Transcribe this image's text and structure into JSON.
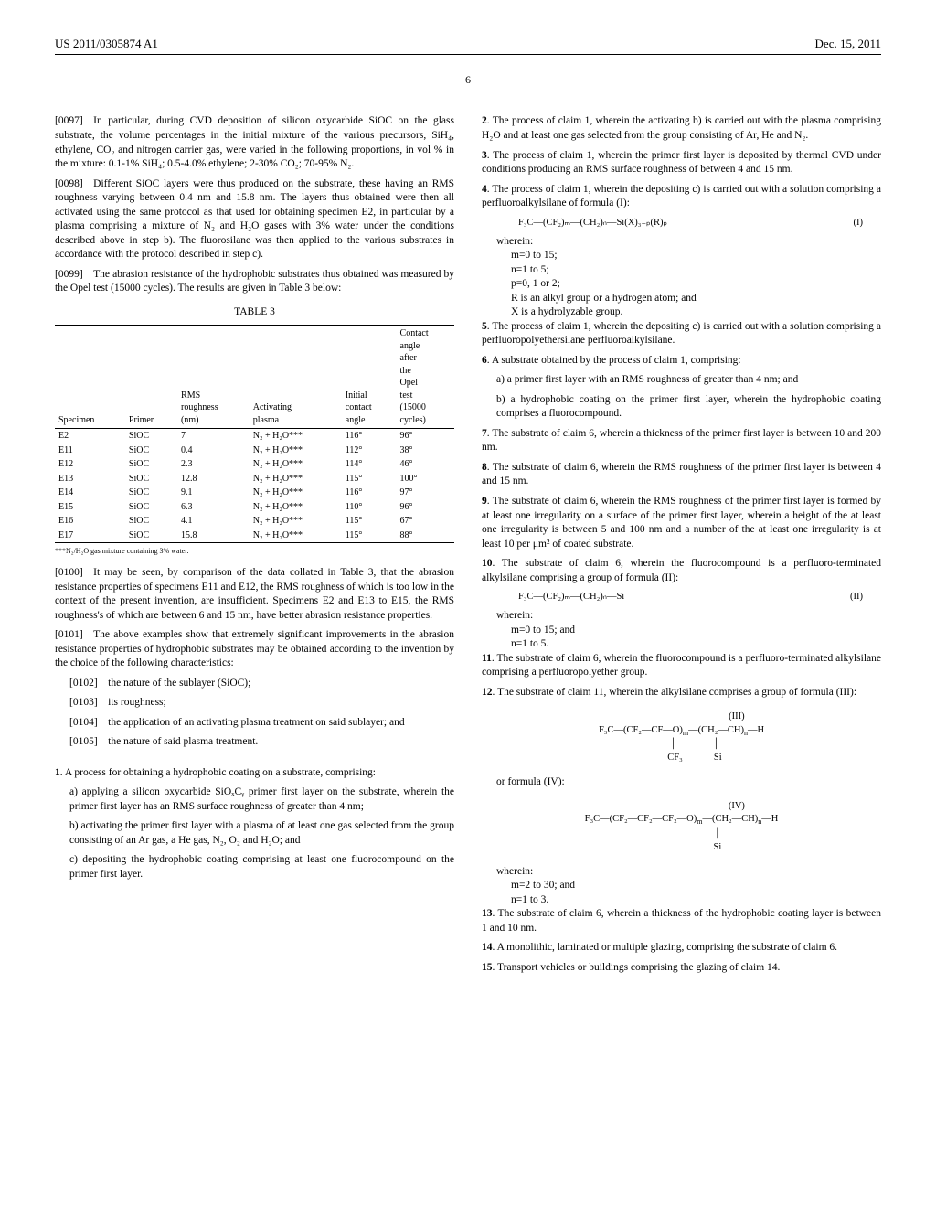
{
  "header": {
    "pub_number": "US 2011/0305874 A1",
    "date": "Dec. 15, 2011"
  },
  "page_num": "6",
  "left": {
    "p97": "[0097] In particular, during CVD deposition of silicon oxycarbide SiOC on the glass substrate, the volume percentages in the initial mixture of the various precursors, SiH₄, ethylene, CO₂ and nitrogen carrier gas, were varied in the following proportions, in vol % in the mixture: 0.1-1% SiH₄; 0.5-4.0% ethylene; 2-30% CO₂; 70-95% N₂.",
    "p98": "[0098] Different SiOC layers were thus produced on the substrate, these having an RMS roughness varying between 0.4 nm and 15.8 nm. The layers thus obtained were then all activated using the same protocol as that used for obtaining specimen E2, in particular by a plasma comprising a mixture of N₂ and H₂O gases with 3% water under the conditions described above in step b). The fluorosilane was then applied to the various substrates in accordance with the protocol described in step c).",
    "p99": "[0099] The abrasion resistance of the hydrophobic substrates thus obtained was measured by the Opel test (15000 cycles). The results are given in Table 3 below:",
    "table_title": "TABLE 3",
    "table": {
      "headers": [
        "Specimen",
        "Primer",
        "RMS\nroughness\n(nm)",
        "Activating\nplasma",
        "Initial\ncontact\nangle",
        "Contact\nangle\nafter\nthe\nOpel\ntest\n(15000\ncycles)"
      ],
      "rows": [
        [
          "E2",
          "SiOC",
          "7",
          "N₂ + H₂O***",
          "116°",
          "96°"
        ],
        [
          "E11",
          "SiOC",
          "0.4",
          "N₂ + H₂O***",
          "112°",
          "38°"
        ],
        [
          "E12",
          "SiOC",
          "2.3",
          "N₂ + H₂O***",
          "114°",
          "46°"
        ],
        [
          "E13",
          "SiOC",
          "12.8",
          "N₂ + H₂O***",
          "115°",
          "100°"
        ],
        [
          "E14",
          "SiOC",
          "9.1",
          "N₂ + H₂O***",
          "116°",
          "97°"
        ],
        [
          "E15",
          "SiOC",
          "6.3",
          "N₂ + H₂O***",
          "110°",
          "96°"
        ],
        [
          "E16",
          "SiOC",
          "4.1",
          "N₂ + H₂O***",
          "115°",
          "67°"
        ],
        [
          "E17",
          "SiOC",
          "15.8",
          "N₂ + H₂O***",
          "115°",
          "88°"
        ]
      ]
    },
    "footnote": "***N₂/H₂O gas mixture containing 3% water.",
    "p100": "[0100] It may be seen, by comparison of the data collated in Table 3, that the abrasion resistance properties of specimens E11 and E12, the RMS roughness of which is too low in the context of the present invention, are insufficient. Specimens E2 and E13 to E15, the RMS roughness's of which are between 6 and 15 nm, have better abrasion resistance properties.",
    "p101": "[0101] The above examples show that extremely significant improvements in the abrasion resistance properties of hydrophobic substrates may be obtained according to the invention by the choice of the following characteristics:",
    "p102": "[0102] the nature of the sublayer (SiOC);",
    "p103": "[0103] its roughness;",
    "p104": "[0104] the application of an activating plasma treatment on said sublayer; and",
    "p105": "[0105] the nature of said plasma treatment.",
    "claim1_intro": ". A process for obtaining a hydrophobic coating on a substrate, comprising:",
    "c1a": "a) applying a silicon oxycarbide SiOₓCᵧ primer first layer on the substrate, wherein the primer first layer has an RMS surface roughness of greater than 4 nm;",
    "c1b": "b) activating the primer first layer with a plasma of at least one gas selected from the group consisting of an Ar gas, a He gas, N₂, O₂ and H₂O; and",
    "c1c": "c) depositing the hydrophobic coating comprising at least one fluorocompound on the primer first layer."
  },
  "right": {
    "c2": ". The process of claim 1, wherein the activating b) is carried out with the plasma comprising H₂O and at least one gas selected from the group consisting of Ar, He and N₂.",
    "c3": ". The process of claim 1, wherein the primer first layer is deposited by thermal CVD under conditions producing an RMS surface roughness of between 4 and 15 nm.",
    "c4": ". The process of claim 1, wherein the depositing c) is carried out with a solution comprising a perfluoroalkylsilane of formula (I):",
    "f1": "F₃C—(CF₂)ₘ—(CH₂)ₙ—Si(X)₃₋ₚ(R)ₚ",
    "f1_label": "(I)",
    "wherein": "wherein:",
    "m0": "m=0 to 15;",
    "n1": "n=1 to 5;",
    "p0": "p=0, 1 or 2;",
    "r_is": "R is an alkyl group or a hydrogen atom; and",
    "x_is": "X is a hydrolyzable group.",
    "c5": ". The process of claim 1, wherein the depositing c) is carried out with a solution comprising a perfluoropolyethersilane perfluoroalkylsilane.",
    "c6": ". A substrate obtained by the process of claim 1, comprising:",
    "c6a": "a) a primer first layer with an RMS roughness of greater than 4 nm; and",
    "c6b": "b) a hydrophobic coating on the primer first layer, wherein the hydrophobic coating comprises a fluorocompound.",
    "c7": ". The substrate of claim 6, wherein a thickness of the primer first layer is between 10 and 200 nm.",
    "c8": ". The substrate of claim 6, wherein the RMS roughness of the primer first layer is between 4 and 15 nm.",
    "c9": ". The substrate of claim 6, wherein the RMS roughness of the primer first layer is formed by at least one irregularity on a surface of the primer first layer, wherein a height of the at least one irregularity is between 5 and 100 nm and a number of the at least one irregularity is at least 10 per μm² of coated substrate.",
    "c10": ". The substrate of claim 6, wherein the fluorocompound is a perfluoro-terminated alkylsilane comprising a group of formula (II):",
    "f2": "F₃C—(CF₂)ₘ—(CH₂)ₙ—Si",
    "f2_label": "(II)",
    "m0_2": "m=0 to 15; and",
    "n1_2": "n=1 to 5.",
    "c11": ". The substrate of claim 6, wherein the fluorocompound is a perfluoro-terminated alkylsilane comprising a perfluoropolyether group.",
    "c12": ". The substrate of claim 11, wherein the alkylsilane comprises a group of formula (III):",
    "f3_label": "(III)",
    "or_f4": "or formula (IV):",
    "f4_label": "(IV)",
    "m2": "m=2 to 30; and",
    "n1_3": "n=1 to 3.",
    "c13": ". The substrate of claim 6, wherein a thickness of the hydrophobic coating layer is between 1 and 10 nm.",
    "c14": ". A monolithic, laminated or multiple glazing, comprising the substrate of claim 6.",
    "c15": ". Transport vehicles or buildings comprising the glazing of claim 14."
  }
}
